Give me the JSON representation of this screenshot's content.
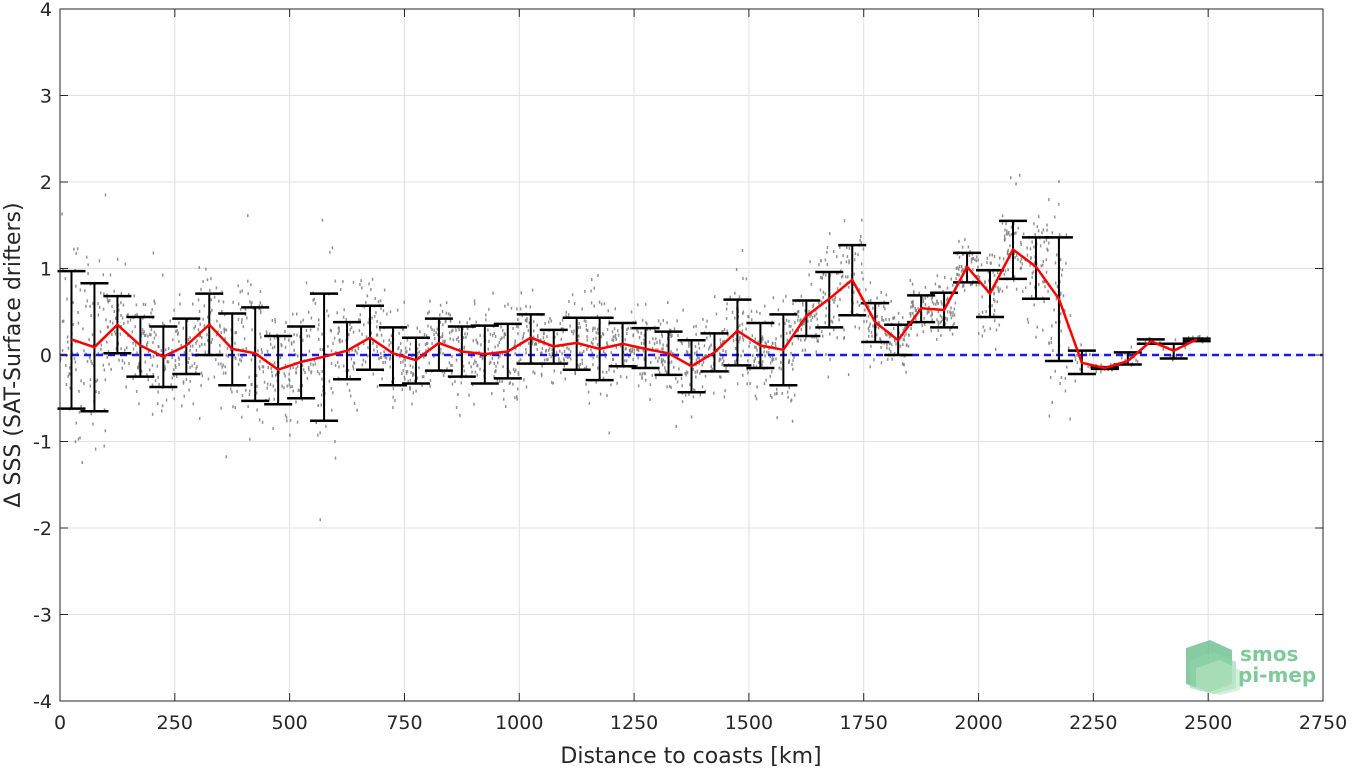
{
  "chart_data": {
    "type": "scatter",
    "title": "",
    "xlabel": "Distance to coasts [km]",
    "ylabel": "Δ SSS (SAT-Surface drifters)",
    "xlim": [
      0,
      2750
    ],
    "ylim": [
      -4,
      4
    ],
    "xticks": [
      0,
      250,
      500,
      750,
      1000,
      1250,
      1500,
      1750,
      2000,
      2250,
      2500,
      2750
    ],
    "yticks": [
      -4,
      -3,
      -2,
      -1,
      0,
      1,
      2,
      3,
      4
    ],
    "xtick_labels": [
      "0",
      "250",
      "500",
      "750",
      "1000",
      "1250",
      "1500",
      "1750",
      "2000",
      "2250",
      "2500",
      "2750"
    ],
    "ytick_labels": [
      "-4",
      "-3",
      "-2",
      "-1",
      "0",
      "1",
      "2",
      "3",
      "4"
    ],
    "grid": true,
    "zero_line": {
      "y": 0,
      "color": "#1a1ae6",
      "style": "dashed"
    },
    "scatter_color": "#808080",
    "mean_line_color": "#ff0000",
    "errorbar_color": "#000000",
    "series": [
      {
        "style": "errorbar",
        "x": [
          25,
          75,
          125,
          175,
          225,
          275,
          325,
          375,
          425,
          475,
          525,
          575,
          625,
          675,
          725,
          775,
          825,
          875,
          925,
          975,
          1025,
          1075,
          1125,
          1175,
          1225,
          1275,
          1325,
          1375,
          1425,
          1475,
          1525,
          1575,
          1625,
          1675,
          1725,
          1775,
          1825,
          1875,
          1925,
          1975,
          2025,
          2075,
          2125,
          2175,
          2225,
          2275,
          2325,
          2375,
          2425,
          2475
        ],
        "mean": [
          0.18,
          0.09,
          0.35,
          0.11,
          -0.02,
          0.11,
          0.35,
          0.07,
          0.02,
          -0.17,
          -0.08,
          -0.02,
          0.05,
          0.2,
          0.02,
          -0.06,
          0.14,
          0.04,
          0.01,
          0.04,
          0.2,
          0.1,
          0.14,
          0.07,
          0.13,
          0.07,
          0.02,
          -0.13,
          0.03,
          0.28,
          0.11,
          0.06,
          0.45,
          0.65,
          0.87,
          0.38,
          0.17,
          0.54,
          0.52,
          1.02,
          0.71,
          1.22,
          1.02,
          0.65,
          -0.09,
          -0.15,
          -0.07,
          0.16,
          0.05,
          0.18
        ],
        "lower": [
          -0.62,
          -0.65,
          0.02,
          -0.25,
          -0.37,
          -0.22,
          0.0,
          -0.35,
          -0.53,
          -0.57,
          -0.5,
          -0.76,
          -0.28,
          -0.17,
          -0.35,
          -0.33,
          -0.18,
          -0.25,
          -0.33,
          -0.27,
          -0.1,
          -0.1,
          -0.17,
          -0.29,
          -0.13,
          -0.15,
          -0.23,
          -0.43,
          -0.19,
          -0.12,
          -0.15,
          -0.35,
          0.22,
          0.32,
          0.46,
          0.15,
          0.0,
          0.38,
          0.32,
          0.84,
          0.44,
          0.88,
          0.65,
          -0.07,
          -0.22,
          -0.16,
          -0.11,
          0.13,
          -0.04,
          0.16
        ],
        "upper": [
          0.97,
          0.83,
          0.68,
          0.44,
          0.33,
          0.42,
          0.71,
          0.48,
          0.55,
          0.22,
          0.33,
          0.71,
          0.38,
          0.57,
          0.32,
          0.2,
          0.42,
          0.33,
          0.34,
          0.36,
          0.47,
          0.29,
          0.43,
          0.43,
          0.37,
          0.31,
          0.27,
          0.17,
          0.25,
          0.64,
          0.37,
          0.47,
          0.63,
          0.96,
          1.27,
          0.6,
          0.35,
          0.69,
          0.72,
          1.18,
          0.98,
          1.55,
          1.36,
          1.36,
          0.05,
          -0.14,
          0.03,
          0.18,
          0.13,
          0.19
        ]
      }
    ]
  },
  "logo": {
    "line1": "smos",
    "line2": "pi-mep"
  }
}
